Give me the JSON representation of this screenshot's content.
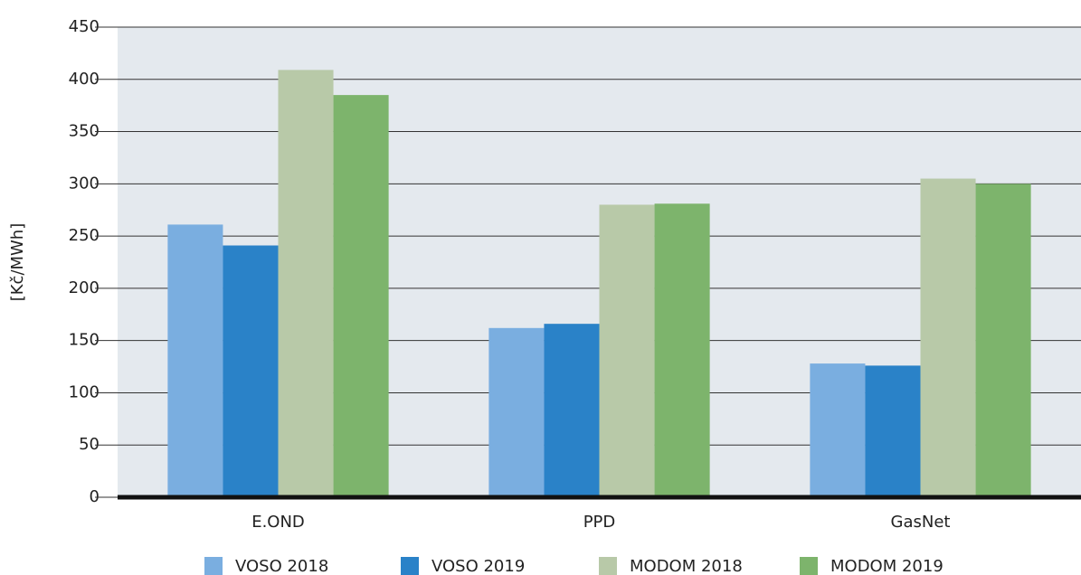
{
  "chart_data": {
    "type": "bar",
    "y_label": "[Kč/MWh]",
    "categories": [
      "E.OND",
      "PPD",
      "GasNet"
    ],
    "series": [
      {
        "name": "VOSO 2018",
        "color": "#7aaee0",
        "values": [
          261,
          162,
          128
        ]
      },
      {
        "name": "VOSO 2019",
        "color": "#2a82c8",
        "values": [
          241,
          166,
          126
        ]
      },
      {
        "name": "MODOM 2018",
        "color": "#b8c9a8",
        "values": [
          409,
          280,
          305
        ]
      },
      {
        "name": "MODOM 2019",
        "color": "#7db46c",
        "values": [
          385,
          281,
          300
        ]
      }
    ],
    "ylim": [
      0,
      450
    ],
    "yticks": [
      0,
      50,
      100,
      150,
      200,
      250,
      300,
      350,
      400,
      450
    ],
    "grid": true
  }
}
